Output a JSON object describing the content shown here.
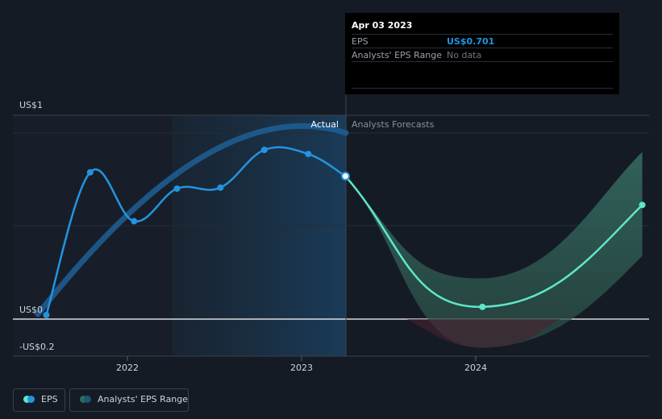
{
  "chart_data": {
    "type": "line",
    "y_axis": {
      "labels": [
        "US$1",
        "US$0",
        "-US$0.2"
      ],
      "ylim": [
        -0.2,
        1.0
      ],
      "grid": true
    },
    "x_axis": {
      "ticks": [
        "2022",
        "2023",
        "2024"
      ]
    },
    "divider_labels": {
      "actual": "Actual",
      "forecast": "Analysts Forecasts"
    },
    "series": [
      {
        "name": "EPS",
        "color": "#2394df",
        "points": [
          {
            "date": "2021-07",
            "y": 0.02
          },
          {
            "date": "2021-10",
            "y": 0.72
          },
          {
            "date": "2022-01",
            "y": 0.48
          },
          {
            "date": "2022-04",
            "y": 0.64
          },
          {
            "date": "2022-07",
            "y": 0.645
          },
          {
            "date": "2022-10",
            "y": 0.83
          },
          {
            "date": "2023-01",
            "y": 0.81
          },
          {
            "date": "2023-04-03",
            "y": 0.701
          }
        ]
      },
      {
        "name": "EPS",
        "kind": "forecast",
        "color": "#5ee6c9",
        "points": [
          {
            "date": "2023-04-03",
            "y": 0.701
          },
          {
            "date": "2024-01",
            "y": 0.06
          },
          {
            "date": "2024-12",
            "y": 0.56
          }
        ]
      }
    ],
    "range": {
      "name": "Analysts' EPS Range",
      "color": "#2e6b62",
      "low": [
        {
          "date": "2023-04-03",
          "y": 0.701
        },
        {
          "date": "2024-01",
          "y": -0.14
        },
        {
          "date": "2024-12",
          "y": 0.31
        }
      ],
      "high": [
        {
          "date": "2023-04-03",
          "y": 0.701
        },
        {
          "date": "2024-01",
          "y": 0.2
        },
        {
          "date": "2024-12",
          "y": 0.82
        }
      ]
    },
    "highlight_date": "2023-04-03"
  },
  "tooltip": {
    "date": "Apr 03 2023",
    "eps_label": "EPS",
    "eps_value": "US$0.701",
    "range_label": "Analysts' EPS Range",
    "range_value": "No data"
  },
  "legend": [
    {
      "label": "EPS",
      "colors": [
        "#2394df",
        "#5ee6c9"
      ]
    },
    {
      "label": "Analysts' EPS Range",
      "colors": [
        "#2e6b62",
        "#1f5573"
      ]
    }
  ]
}
